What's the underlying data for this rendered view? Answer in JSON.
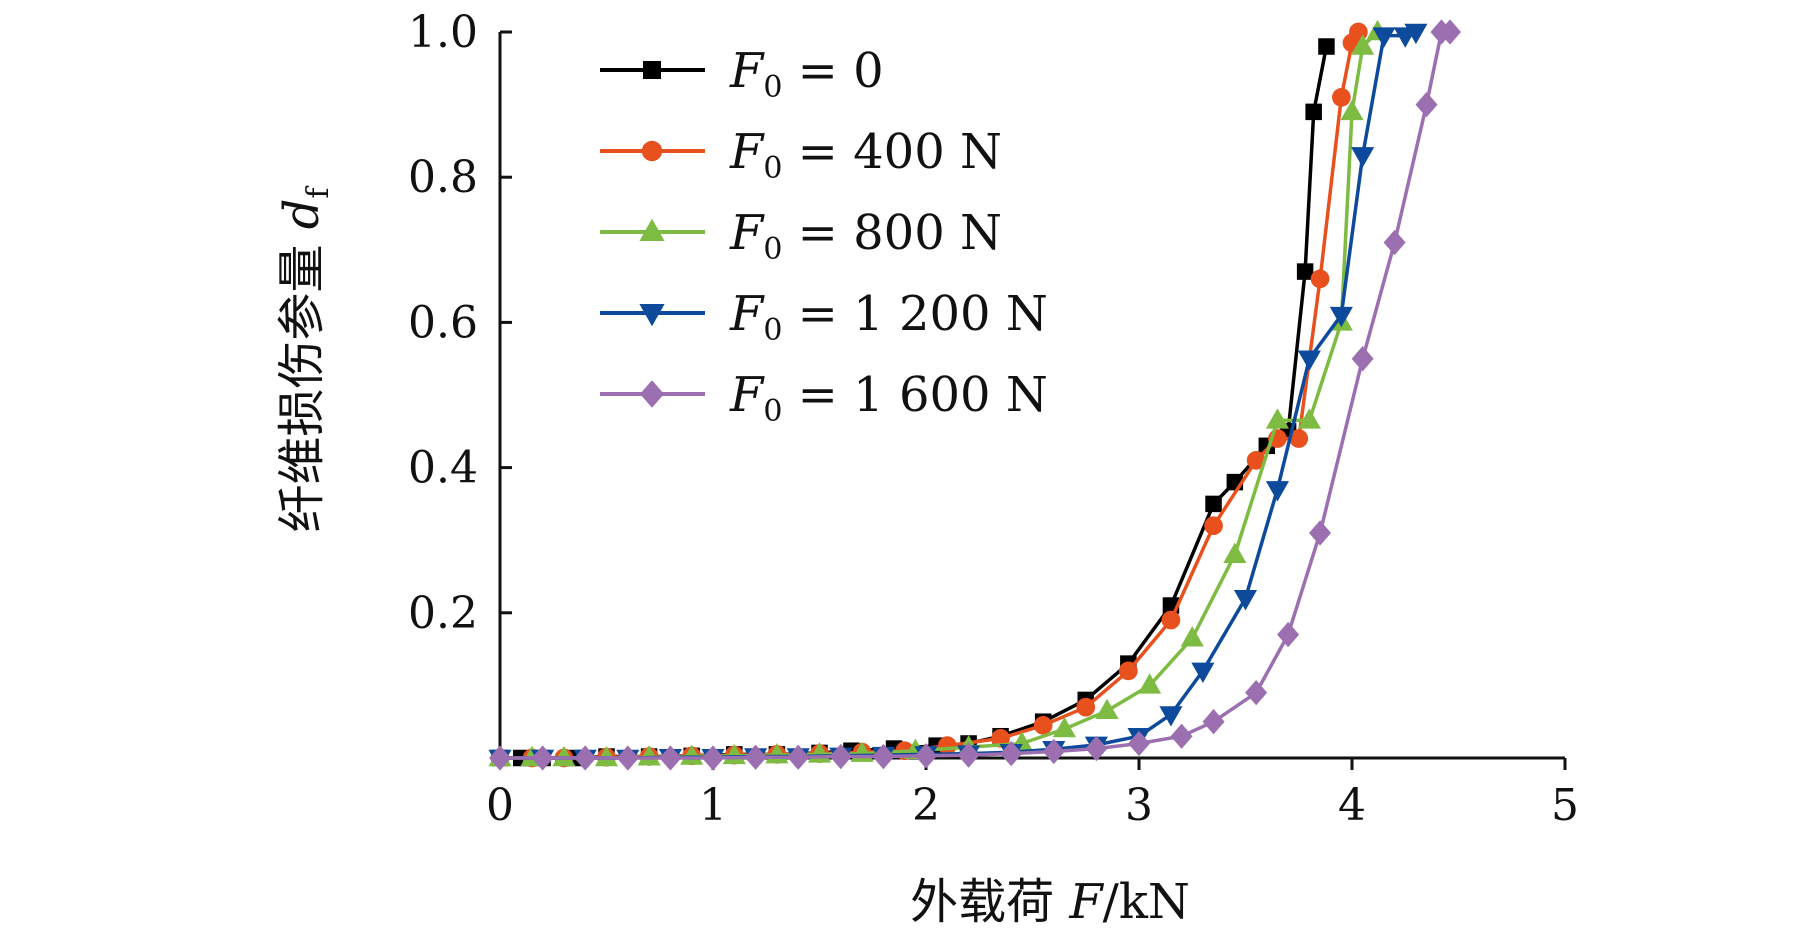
{
  "chart_data": {
    "type": "line",
    "xlabel": {
      "prefix": "外载荷 ",
      "var": "F",
      "suffix": "/kN"
    },
    "ylabel": {
      "prefix": "纤维损伤参量 ",
      "var": "d",
      "sub": "f"
    },
    "xlim": [
      0,
      5
    ],
    "ylim": [
      0,
      1.0
    ],
    "x_ticks": [
      "0",
      "1",
      "2",
      "3",
      "4",
      "5"
    ],
    "y_ticks": [
      "0.2",
      "0.4",
      "0.6",
      "0.8",
      "1.0"
    ],
    "grid": false,
    "legend_position": "top-left",
    "series": [
      {
        "name": "F0 = 0",
        "legend_var": "F",
        "legend_sub": "0",
        "legend_value": " = 0",
        "color": "#000000",
        "marker": "square",
        "x": [
          0.0,
          0.1,
          0.2,
          0.35,
          0.5,
          0.7,
          0.9,
          1.1,
          1.3,
          1.5,
          1.65,
          1.85,
          2.05,
          2.2,
          2.35,
          2.55,
          2.75,
          2.95,
          3.15,
          3.35,
          3.45,
          3.6,
          3.7,
          3.78,
          3.82,
          3.88
        ],
        "y": [
          0.0,
          0.0,
          0.0,
          0.0,
          0.002,
          0.002,
          0.003,
          0.005,
          0.005,
          0.007,
          0.01,
          0.013,
          0.017,
          0.02,
          0.03,
          0.05,
          0.08,
          0.13,
          0.21,
          0.35,
          0.38,
          0.43,
          0.45,
          0.67,
          0.89,
          0.98
        ]
      },
      {
        "name": "F0 = 400 N",
        "legend_var": "F",
        "legend_sub": "0",
        "legend_value": " = 400 N",
        "color": "#e8501e",
        "marker": "circle",
        "x": [
          0.0,
          0.15,
          0.3,
          0.5,
          0.7,
          0.9,
          1.1,
          1.3,
          1.5,
          1.7,
          1.9,
          2.1,
          2.35,
          2.55,
          2.75,
          2.95,
          3.15,
          3.35,
          3.55,
          3.65,
          3.75,
          3.85,
          3.95,
          4.0,
          4.03
        ],
        "y": [
          0.0,
          0.0,
          0.0,
          0.001,
          0.002,
          0.003,
          0.004,
          0.005,
          0.006,
          0.008,
          0.01,
          0.017,
          0.027,
          0.045,
          0.07,
          0.12,
          0.19,
          0.32,
          0.41,
          0.44,
          0.44,
          0.66,
          0.91,
          0.985,
          1.0
        ]
      },
      {
        "name": "F0 = 800 N",
        "legend_var": "F",
        "legend_sub": "0",
        "legend_value": " = 800 N",
        "color": "#7dbb42",
        "marker": "triangle-up",
        "x": [
          0.0,
          0.15,
          0.3,
          0.5,
          0.7,
          0.9,
          1.1,
          1.3,
          1.5,
          1.7,
          1.95,
          2.2,
          2.45,
          2.65,
          2.85,
          3.05,
          3.25,
          3.45,
          3.65,
          3.8,
          3.95,
          4.0,
          4.05,
          4.12
        ],
        "y": [
          0.0,
          0.0,
          0.0,
          0.0,
          0.001,
          0.002,
          0.003,
          0.004,
          0.005,
          0.006,
          0.01,
          0.015,
          0.02,
          0.04,
          0.065,
          0.1,
          0.165,
          0.28,
          0.465,
          0.465,
          0.6,
          0.89,
          0.98,
          1.0
        ]
      },
      {
        "name": "F0 = 1 200 N",
        "legend_var": "F",
        "legend_sub": "0",
        "legend_value": " = 1 200 N",
        "color": "#0d4a9c",
        "marker": "triangle-down",
        "x": [
          0.0,
          0.2,
          0.4,
          0.6,
          0.8,
          1.0,
          1.2,
          1.4,
          1.6,
          1.8,
          2.0,
          2.2,
          2.4,
          2.6,
          2.8,
          3.0,
          3.15,
          3.3,
          3.5,
          3.65,
          3.8,
          3.95,
          4.05,
          4.15,
          4.25,
          4.3
        ],
        "y": [
          0.0,
          0.0,
          0.0,
          0.0,
          0.001,
          0.001,
          0.002,
          0.002,
          0.003,
          0.004,
          0.005,
          0.006,
          0.008,
          0.012,
          0.018,
          0.03,
          0.06,
          0.12,
          0.22,
          0.37,
          0.55,
          0.61,
          0.83,
          0.995,
          0.995,
          1.0
        ]
      },
      {
        "name": "F0 = 1 600 N",
        "legend_var": "F",
        "legend_sub": "0",
        "legend_value": " = 1 600 N",
        "color": "#9b6fb0",
        "marker": "diamond",
        "x": [
          0.0,
          0.2,
          0.4,
          0.6,
          0.8,
          1.0,
          1.2,
          1.4,
          1.6,
          1.8,
          2.0,
          2.2,
          2.4,
          2.6,
          2.8,
          3.0,
          3.2,
          3.35,
          3.55,
          3.7,
          3.85,
          4.05,
          4.2,
          4.35,
          4.42,
          4.46
        ],
        "y": [
          0.0,
          0.0,
          0.0,
          0.0,
          0.0,
          0.0,
          0.001,
          0.001,
          0.002,
          0.002,
          0.003,
          0.004,
          0.006,
          0.009,
          0.013,
          0.02,
          0.03,
          0.05,
          0.09,
          0.17,
          0.31,
          0.55,
          0.71,
          0.9,
          1.0,
          1.0
        ]
      }
    ]
  }
}
